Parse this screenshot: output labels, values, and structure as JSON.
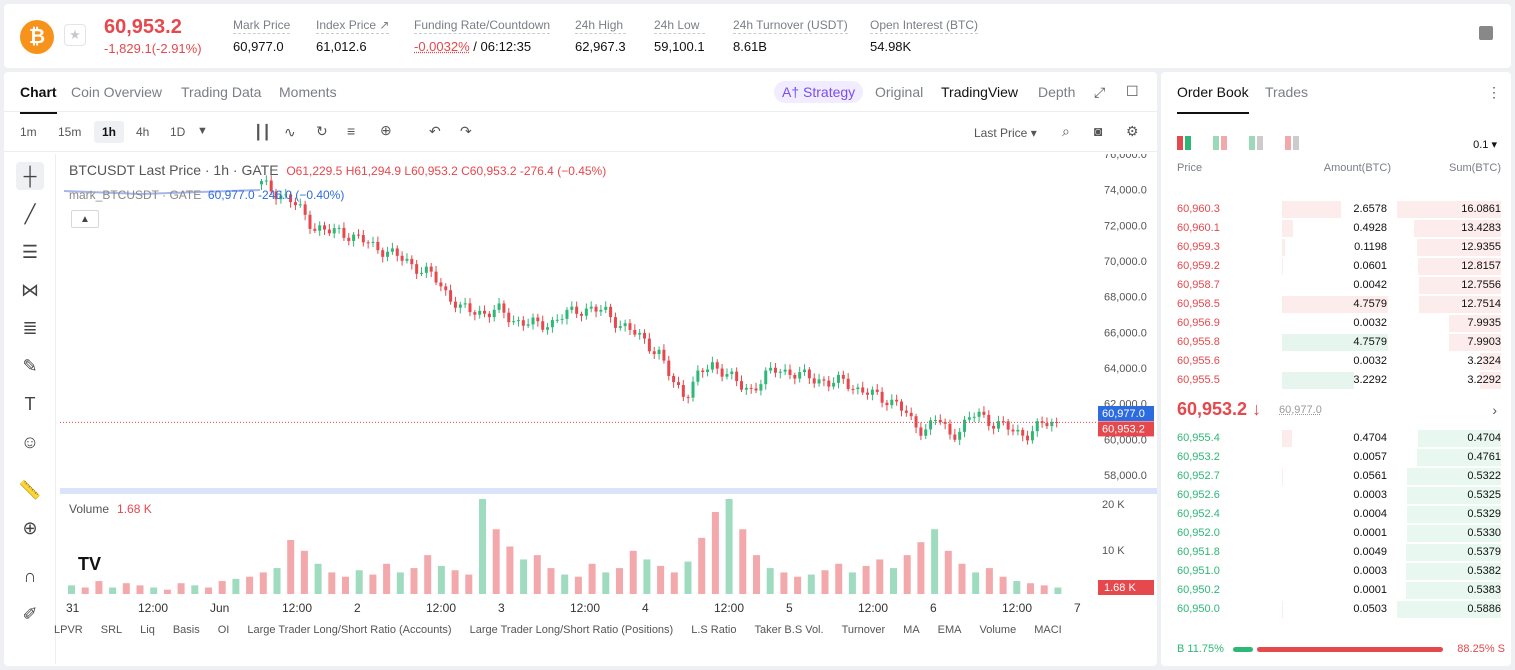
{
  "header": {
    "coin_symbol": "₿",
    "last_price": "60,953.2",
    "change": "-1,829.1(-2.91%)",
    "stats": [
      {
        "label": "Mark Price",
        "value": "60,977.0"
      },
      {
        "label": "Index Price ↗",
        "value": "61,012.6"
      },
      {
        "label": "Funding Rate/Countdown",
        "value_red": "-0.0032%",
        "value": " / 06:12:35"
      },
      {
        "label": "24h High",
        "value": "62,967.3"
      },
      {
        "label": "24h Low",
        "value": "59,100.1"
      },
      {
        "label": "24h Turnover (USDT)",
        "value": "8.61B"
      },
      {
        "label": "Open Interest (BTC)",
        "value": "54.98K"
      }
    ]
  },
  "chart_tabs": {
    "left": [
      "Chart",
      "Coin Overview",
      "Trading Data",
      "Moments"
    ],
    "strategy": "A† Strategy",
    "right": [
      "Original",
      "TradingView",
      "Depth"
    ]
  },
  "toolbar": {
    "timeframes": [
      "1m",
      "15m",
      "1h",
      "4h",
      "1D"
    ],
    "price_type": "Last Price ▾"
  },
  "chart": {
    "title": "BTCUSDT Last Price · 1h · GATE",
    "ohlc": "O61,229.5  H61,294.9  L60,953.2  C60,953.2  -276.4 (−0.45%)",
    "mark_label": "mark_BTCUSDT · GATE",
    "mark_value": "60,977.0  -246.0 (−0.40%)",
    "volume_label": "Volume",
    "volume_value": "1.68 K",
    "bottom_indicators": [
      "LPVR",
      "SRL",
      "Liq",
      "Basis",
      "OI",
      "Large Trader Long/Short Ratio (Accounts)",
      "Large Trader Long/Short Ratio (Positions)",
      "L.S Ratio",
      "Taker B.S Vol.",
      "Turnover",
      "MA",
      "EMA",
      "Volume",
      "MACI"
    ]
  },
  "chart_data": {
    "type": "candlestick",
    "price_axis": [
      "76,000.0",
      "74,000.0",
      "72,000.0",
      "70,000.0",
      "68,000.0",
      "66,000.0",
      "64,000.0",
      "62,000.0",
      "60,000.0",
      "58,000.0"
    ],
    "volume_axis": [
      "20 K",
      "10 K"
    ],
    "x_ticks": [
      "31",
      "12:00",
      "Jun",
      "12:00",
      "2",
      "12:00",
      "3",
      "12:00",
      "4",
      "12:00",
      "5",
      "12:00",
      "6",
      "12:00",
      "7"
    ],
    "mark_price_tag": "60,977.0",
    "last_price_tag": "60,953.2",
    "volume_tag": "1.68 K",
    "ylim": [
      57500,
      76000
    ],
    "close_path": [
      74300,
      73900,
      73500,
      72800,
      71900,
      71600,
      71700,
      71300,
      71000,
      70700,
      70300,
      70000,
      69500,
      69100,
      68200,
      67300,
      67200,
      67100,
      67200,
      66700,
      66500,
      66400,
      66600,
      67000,
      67300,
      67300,
      67100,
      66500,
      66000,
      65500,
      64800,
      63200,
      62500,
      63600,
      64200,
      63800,
      63000,
      62800,
      63500,
      64000,
      63700,
      63500,
      63400,
      63100,
      63300,
      62800,
      62500,
      62300,
      62000,
      61000,
      60500,
      61200,
      60200,
      60800,
      61500,
      61000,
      60700,
      60400,
      60300,
      60900,
      60953
    ],
    "volume_rel": [
      4,
      3,
      6,
      3,
      5,
      4,
      3,
      2,
      5,
      4,
      3,
      6,
      7,
      8,
      10,
      12,
      25,
      20,
      14,
      10,
      8,
      11,
      9,
      14,
      10,
      12,
      18,
      13,
      11,
      9,
      44,
      30,
      22,
      16,
      18,
      12,
      9,
      8,
      14,
      10,
      12,
      20,
      16,
      13,
      10,
      15,
      26,
      38,
      44,
      30,
      18,
      12,
      10,
      8,
      9,
      11,
      14,
      10,
      13,
      16,
      12,
      18,
      24,
      30,
      20,
      14,
      10,
      12,
      8,
      6,
      5,
      4,
      3
    ]
  },
  "orderbook": {
    "tabs": [
      "Order Book",
      "Trades"
    ],
    "precision": "0.1 ▾",
    "headers": [
      "Price",
      "Amount(BTC)",
      "Sum(BTC)"
    ],
    "asks": [
      {
        "p": "60,960.3",
        "a": "2.6578",
        "s": "16.0861"
      },
      {
        "p": "60,960.1",
        "a": "0.4928",
        "s": "13.4283"
      },
      {
        "p": "60,959.3",
        "a": "0.1198",
        "s": "12.9355"
      },
      {
        "p": "60,959.2",
        "a": "0.0601",
        "s": "12.8157"
      },
      {
        "p": "60,958.7",
        "a": "0.0042",
        "s": "12.7556"
      },
      {
        "p": "60,958.5",
        "a": "4.7579",
        "s": "12.7514"
      },
      {
        "p": "60,956.9",
        "a": "0.0032",
        "s": "7.9935"
      },
      {
        "p": "60,955.8",
        "a": "4.7579",
        "s": "7.9903"
      },
      {
        "p": "60,955.6",
        "a": "0.0032",
        "s": "3.2324"
      },
      {
        "p": "60,955.5",
        "a": "3.2292",
        "s": "3.2292"
      }
    ],
    "mid_price": "60,953.2 ↓",
    "mid_mark": "60,977.0",
    "bids": [
      {
        "p": "60,955.4",
        "a": "0.4704",
        "s": "0.4704"
      },
      {
        "p": "60,953.2",
        "a": "0.0057",
        "s": "0.4761"
      },
      {
        "p": "60,952.7",
        "a": "0.0561",
        "s": "0.5322"
      },
      {
        "p": "60,952.6",
        "a": "0.0003",
        "s": "0.5325"
      },
      {
        "p": "60,952.4",
        "a": "0.0004",
        "s": "0.5329"
      },
      {
        "p": "60,952.0",
        "a": "0.0001",
        "s": "0.5330"
      },
      {
        "p": "60,951.8",
        "a": "0.0049",
        "s": "0.5379"
      },
      {
        "p": "60,951.0",
        "a": "0.0003",
        "s": "0.5382"
      },
      {
        "p": "60,950.2",
        "a": "0.0001",
        "s": "0.5383"
      },
      {
        "p": "60,950.0",
        "a": "0.0503",
        "s": "0.5886"
      }
    ],
    "buy_ratio": "B 11.75%",
    "sell_ratio": "88.25% S"
  },
  "colors": {
    "red": "#e5484d",
    "green": "#2eb877",
    "accent": "#7b4df2"
  }
}
